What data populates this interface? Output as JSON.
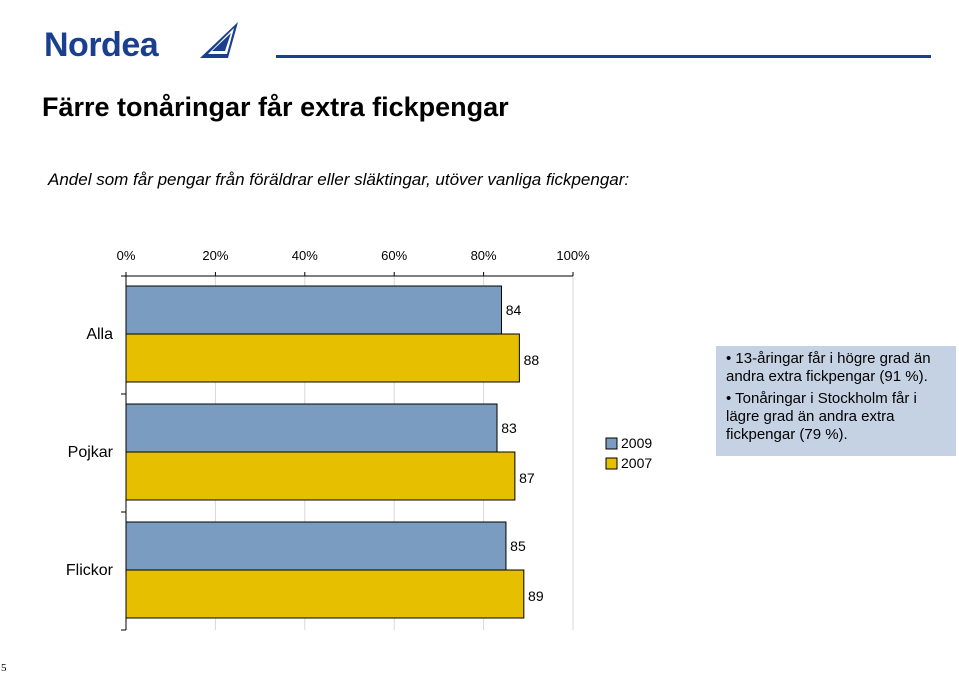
{
  "brand": {
    "name": "Nordea",
    "color": "#1b3f8f"
  },
  "title": "Färre tonåringar får extra fickpengar",
  "subtitle": "Andel som får pengar från föräldrar eller släktingar, utöver vanliga fickpengar:",
  "chart_data": {
    "type": "bar",
    "orientation": "horizontal",
    "categories": [
      "Alla",
      "Pojkar",
      "Flickor"
    ],
    "series": [
      {
        "name": "2009",
        "values": [
          84,
          83,
          85
        ],
        "color": "#7a9cc1"
      },
      {
        "name": "2007",
        "values": [
          88,
          87,
          89
        ],
        "color": "#e5bf00"
      }
    ],
    "xlim": [
      0,
      100
    ],
    "x_ticks": [
      "0%",
      "20%",
      "40%",
      "60%",
      "80%",
      "100%"
    ],
    "x_tick_values": [
      0,
      20,
      40,
      60,
      80,
      100
    ],
    "data_labels": true,
    "grid": true,
    "legend": "right-inside"
  },
  "notes": [
    "• 13-åringar får i högre grad än andra extra fickpengar (91 %).",
    "• Tonåringar i Stockholm får i lägre grad än andra extra fickpengar (79 %)."
  ],
  "page_number": "5"
}
